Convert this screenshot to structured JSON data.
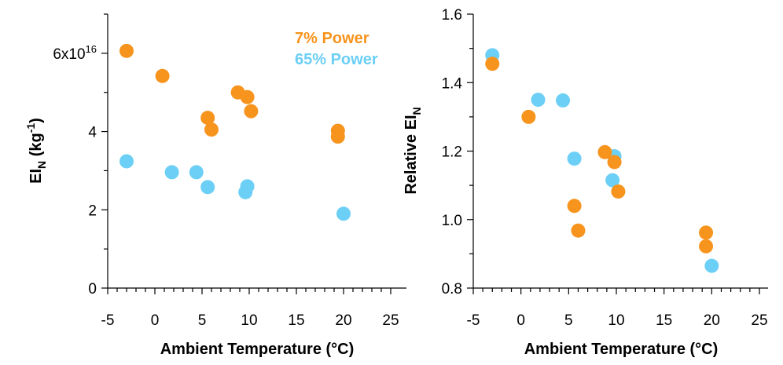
{
  "chart_data": [
    {
      "type": "scatter",
      "xlabel": "Ambient Temperature (°C)",
      "ylabel_main": "EI",
      "ylabel_sub": "N",
      "ylabel_unit_pre": " (kg",
      "ylabel_unit_sup": "-1",
      "ylabel_unit_post": ")",
      "xlim": [
        -5,
        25
      ],
      "ylim": [
        0,
        7e+16
      ],
      "xticks": [
        -5,
        0,
        5,
        10,
        15,
        20,
        25
      ],
      "xtick_labels": [
        "-5",
        "0",
        "5",
        "10",
        "15",
        "20",
        "25"
      ],
      "yticks": [
        0,
        2e+16,
        4e+16,
        6e+16
      ],
      "ytick_labels": [
        "0",
        "2",
        "4",
        "6x10"
      ],
      "ytick_top_sup": "16",
      "legend_position": "top-right",
      "series": [
        {
          "name": "7% Power",
          "color": "#F7941D",
          "x": [
            -3.0,
            0.8,
            5.6,
            6.0,
            8.8,
            9.8,
            10.2,
            19.4,
            19.4
          ],
          "y": [
            6.06e+16,
            5.42e+16,
            4.35e+16,
            4.05e+16,
            5e+16,
            4.88e+16,
            4.52e+16,
            4.02e+16,
            3.87e+16
          ]
        },
        {
          "name": "65% Power",
          "color": "#6CCFF6",
          "x": [
            -3.0,
            1.8,
            4.4,
            5.6,
            9.6,
            9.8,
            20.0
          ],
          "y": [
            3.24e+16,
            2.96e+16,
            2.96e+16,
            2.58e+16,
            2.45e+16,
            2.6e+16,
            1.9e+16
          ]
        }
      ]
    },
    {
      "type": "scatter",
      "xlabel": "Ambient Temperature (°C)",
      "ylabel_main": "Relative EI",
      "ylabel_sub": "N",
      "xlim": [
        -5,
        25
      ],
      "ylim": [
        0.8,
        1.6
      ],
      "xticks": [
        -5,
        0,
        5,
        10,
        15,
        20,
        25
      ],
      "xtick_labels": [
        "-5",
        "0",
        "5",
        "10",
        "15",
        "20",
        "25"
      ],
      "yticks": [
        0.8,
        1.0,
        1.2,
        1.4,
        1.6
      ],
      "ytick_labels": [
        "0.8",
        "1.0",
        "1.2",
        "1.4",
        "1.6"
      ],
      "series": [
        {
          "name": "65% Power",
          "color": "#6CCFF6",
          "x": [
            -3.0,
            1.8,
            4.4,
            5.6,
            9.6,
            9.8,
            20.0
          ],
          "y": [
            1.48,
            1.35,
            1.348,
            1.178,
            1.115,
            1.185,
            0.865
          ]
        },
        {
          "name": "7% Power",
          "color": "#F7941D",
          "x": [
            -3.0,
            0.8,
            5.6,
            6.0,
            8.8,
            9.8,
            10.2,
            19.4,
            19.4
          ],
          "y": [
            1.455,
            1.3,
            1.04,
            0.968,
            1.197,
            1.168,
            1.082,
            0.962,
            0.922
          ]
        }
      ]
    }
  ]
}
